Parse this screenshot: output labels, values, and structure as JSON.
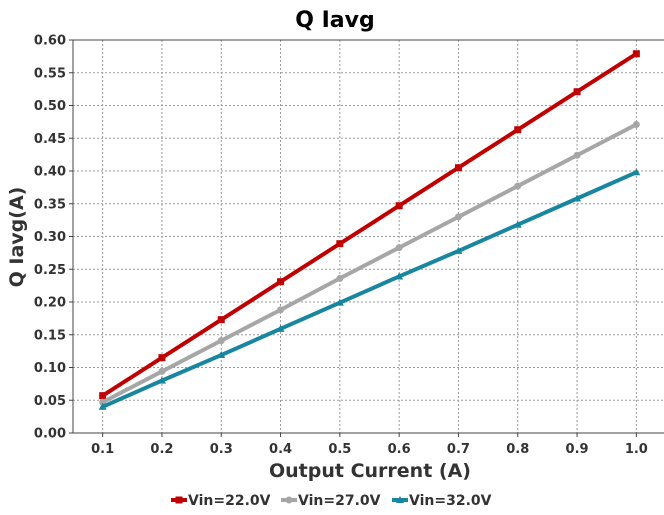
{
  "chart_data": {
    "type": "line",
    "title": "Q Iavg",
    "xlabel": "Output Current (A)",
    "ylabel": "Q Iavg(A)",
    "xlim": [
      0.05,
      1.05
    ],
    "ylim": [
      0.0,
      0.6
    ],
    "xticks": [
      "0.1",
      "0.2",
      "0.3",
      "0.4",
      "0.5",
      "0.6",
      "0.7",
      "0.8",
      "0.9",
      "1.0"
    ],
    "yticks": [
      "0.00",
      "0.05",
      "0.10",
      "0.15",
      "0.20",
      "0.25",
      "0.30",
      "0.35",
      "0.40",
      "0.45",
      "0.50",
      "0.55",
      "0.60"
    ],
    "grid": true,
    "legend_position": "bottom",
    "x": [
      0.1,
      0.2,
      0.3,
      0.4,
      0.5,
      0.6,
      0.7,
      0.8,
      0.9,
      1.0
    ],
    "series": [
      {
        "name": "Vin=22.0V",
        "color": "#c00000",
        "marker": "square",
        "values": [
          0.057,
          0.115,
          0.173,
          0.231,
          0.289,
          0.347,
          0.405,
          0.463,
          0.521,
          0.579
        ]
      },
      {
        "name": "Vin=27.0V",
        "color": "#a6a6a6",
        "marker": "circle",
        "values": [
          0.047,
          0.094,
          0.141,
          0.188,
          0.236,
          0.283,
          0.33,
          0.377,
          0.424,
          0.471
        ]
      },
      {
        "name": "Vin=32.0V",
        "color": "#17869e",
        "marker": "triangle",
        "values": [
          0.04,
          0.08,
          0.119,
          0.159,
          0.199,
          0.239,
          0.278,
          0.318,
          0.358,
          0.398
        ]
      }
    ]
  }
}
